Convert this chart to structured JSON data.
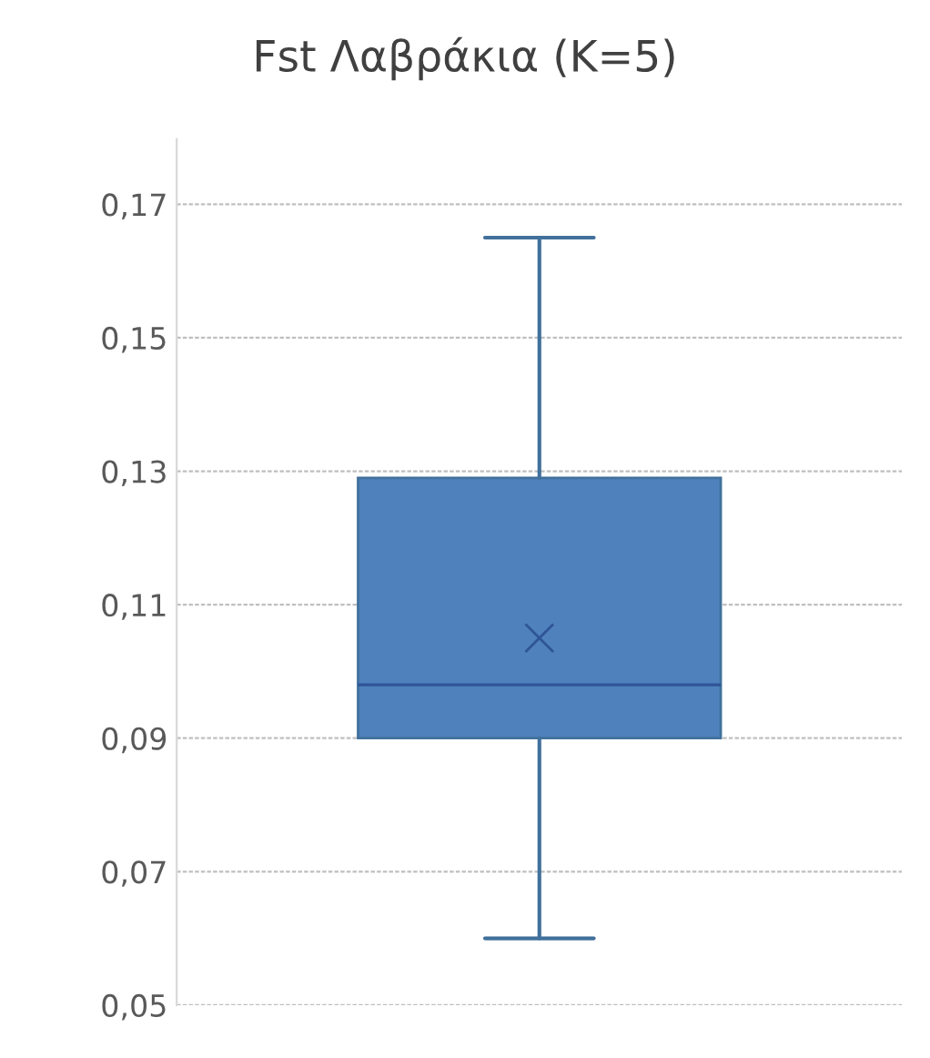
{
  "chart_data": {
    "type": "box",
    "title": "Fst Λαβράκια (K=5)",
    "categories": [
      null
    ],
    "boxes": [
      {
        "low": 0.06,
        "q1": 0.09,
        "median": 0.098,
        "q3": 0.129,
        "high": 0.165,
        "mean": 0.105
      }
    ],
    "color": "#4f81bd",
    "ylim": [
      0.05,
      0.18
    ],
    "yticks": [
      {
        "value": 0.05,
        "label": "0,05"
      },
      {
        "value": 0.07,
        "label": "0,07"
      },
      {
        "value": 0.09,
        "label": "0,09"
      },
      {
        "value": 0.11,
        "label": "0,11"
      },
      {
        "value": 0.13,
        "label": "0,13"
      },
      {
        "value": 0.15,
        "label": "0,15"
      },
      {
        "value": 0.17,
        "label": "0,17"
      }
    ],
    "grid": "y",
    "legend": false
  }
}
